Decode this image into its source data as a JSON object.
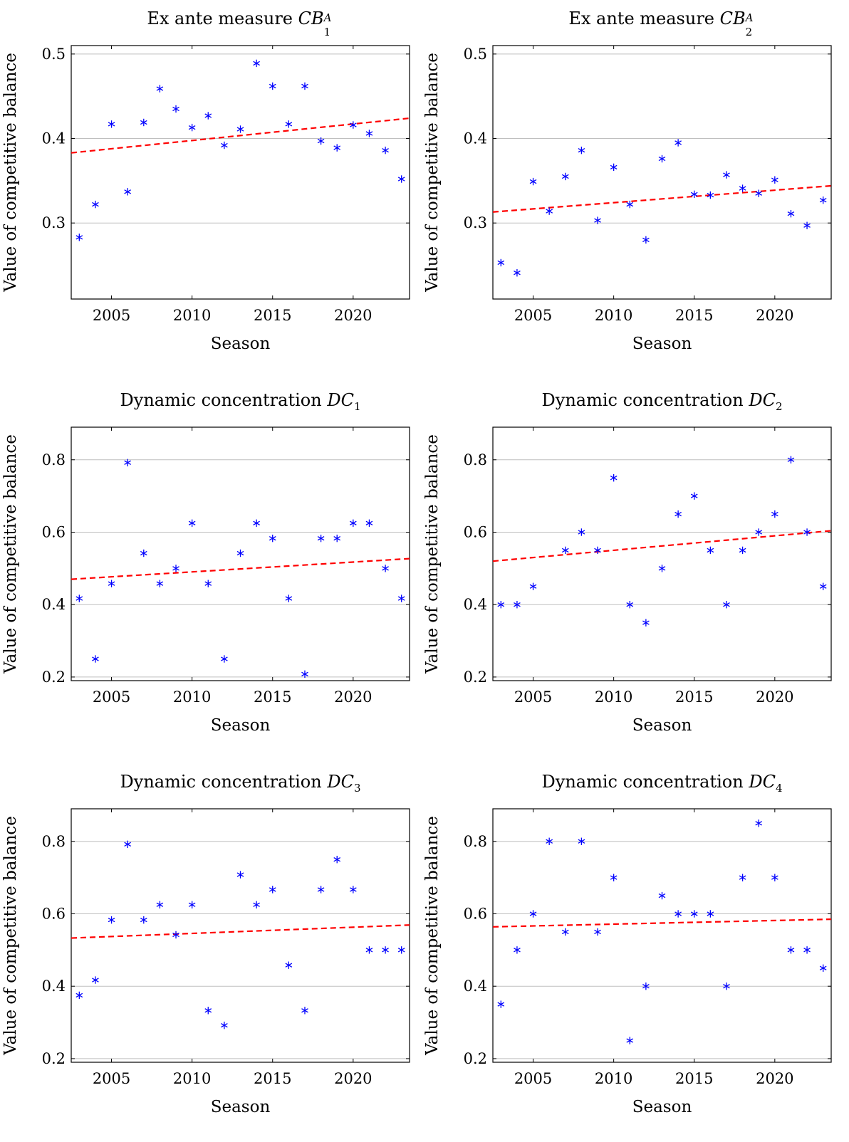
{
  "chart_data": [
    {
      "type": "scatter",
      "title_parts": {
        "main": "Ex ante measure ",
        "var": "CB",
        "sub": "1",
        "sup": "A"
      },
      "xlabel": "Season",
      "ylabel": "Value of competitive balance",
      "xlim": [
        2002.5,
        2023.5
      ],
      "ylim": [
        0.21,
        0.51
      ],
      "xticks": [
        2005,
        2010,
        2015,
        2020
      ],
      "yticks": [
        0.3,
        0.4,
        0.5
      ],
      "ytick_labels": [
        "0.3",
        "0.4",
        "0.5"
      ],
      "grid": "horizontal",
      "x": [
        2003,
        2004,
        2005,
        2006,
        2007,
        2008,
        2009,
        2010,
        2011,
        2012,
        2013,
        2014,
        2015,
        2016,
        2017,
        2018,
        2019,
        2020,
        2021,
        2022,
        2023
      ],
      "y": [
        0.283,
        0.322,
        0.417,
        0.337,
        0.419,
        0.459,
        0.435,
        0.413,
        0.427,
        0.392,
        0.411,
        0.489,
        0.462,
        0.417,
        0.462,
        0.397,
        0.389,
        0.416,
        0.406,
        0.386,
        0.352
      ],
      "trend": [
        [
          2002.5,
          0.383
        ],
        [
          2023.5,
          0.424
        ]
      ]
    },
    {
      "type": "scatter",
      "title_parts": {
        "main": "Ex ante measure ",
        "var": "CB",
        "sub": "2",
        "sup": "A"
      },
      "xlabel": "Season",
      "ylabel": "Value of competitive balance",
      "xlim": [
        2002.5,
        2023.5
      ],
      "ylim": [
        0.21,
        0.51
      ],
      "xticks": [
        2005,
        2010,
        2015,
        2020
      ],
      "yticks": [
        0.3,
        0.4,
        0.5
      ],
      "ytick_labels": [
        "0.3",
        "0.4",
        "0.5"
      ],
      "grid": "horizontal",
      "x": [
        2003,
        2004,
        2005,
        2006,
        2007,
        2008,
        2009,
        2010,
        2011,
        2012,
        2013,
        2014,
        2015,
        2016,
        2017,
        2018,
        2019,
        2020,
        2021,
        2022,
        2023
      ],
      "y": [
        0.253,
        0.241,
        0.349,
        0.314,
        0.355,
        0.386,
        0.303,
        0.366,
        0.322,
        0.28,
        0.376,
        0.395,
        0.334,
        0.333,
        0.357,
        0.341,
        0.335,
        0.351,
        0.311,
        0.297,
        0.327
      ],
      "trend": [
        [
          2002.5,
          0.313
        ],
        [
          2023.5,
          0.344
        ]
      ]
    },
    {
      "type": "scatter",
      "title_parts": {
        "main": "Dynamic concentration ",
        "var": "DC",
        "sub": "1",
        "sup": ""
      },
      "xlabel": "Season",
      "ylabel": "Value of competitive balance",
      "xlim": [
        2002.5,
        2023.5
      ],
      "ylim": [
        0.19,
        0.89
      ],
      "xticks": [
        2005,
        2010,
        2015,
        2020
      ],
      "yticks": [
        0.2,
        0.4,
        0.6,
        0.8
      ],
      "ytick_labels": [
        "0.2",
        "0.4",
        "0.6",
        "0.8"
      ],
      "grid": "horizontal",
      "x": [
        2003,
        2004,
        2005,
        2006,
        2007,
        2008,
        2009,
        2010,
        2011,
        2012,
        2013,
        2014,
        2015,
        2016,
        2017,
        2018,
        2019,
        2020,
        2021,
        2022,
        2023
      ],
      "y": [
        0.417,
        0.25,
        0.458,
        0.792,
        0.542,
        0.458,
        0.5,
        0.625,
        0.458,
        0.25,
        0.542,
        0.625,
        0.583,
        0.417,
        0.208,
        0.583,
        0.583,
        0.625,
        0.625,
        0.5,
        0.417
      ],
      "trend": [
        [
          2002.5,
          0.47
        ],
        [
          2023.5,
          0.527
        ]
      ]
    },
    {
      "type": "scatter",
      "title_parts": {
        "main": "Dynamic concentration ",
        "var": "DC",
        "sub": "2",
        "sup": ""
      },
      "xlabel": "Season",
      "ylabel": "Value of competitive balance",
      "xlim": [
        2002.5,
        2023.5
      ],
      "ylim": [
        0.19,
        0.89
      ],
      "xticks": [
        2005,
        2010,
        2015,
        2020
      ],
      "yticks": [
        0.2,
        0.4,
        0.6,
        0.8
      ],
      "ytick_labels": [
        "0.2",
        "0.4",
        "0.6",
        "0.8"
      ],
      "grid": "horizontal",
      "x": [
        2003,
        2004,
        2005,
        2007,
        2008,
        2009,
        2010,
        2011,
        2012,
        2013,
        2014,
        2015,
        2016,
        2017,
        2018,
        2019,
        2020,
        2021,
        2022,
        2023
      ],
      "y": [
        0.4,
        0.4,
        0.45,
        0.55,
        0.6,
        0.55,
        0.75,
        0.4,
        0.35,
        0.5,
        0.65,
        0.7,
        0.55,
        0.4,
        0.55,
        0.6,
        0.65,
        0.8,
        0.6,
        0.45
      ],
      "trend": [
        [
          2002.5,
          0.52
        ],
        [
          2023.5,
          0.604
        ]
      ]
    },
    {
      "type": "scatter",
      "title_parts": {
        "main": "Dynamic concentration ",
        "var": "DC",
        "sub": "3",
        "sup": ""
      },
      "xlabel": "Season",
      "ylabel": "Value of competitive balance",
      "xlim": [
        2002.5,
        2023.5
      ],
      "ylim": [
        0.19,
        0.89
      ],
      "xticks": [
        2005,
        2010,
        2015,
        2020
      ],
      "yticks": [
        0.2,
        0.4,
        0.6,
        0.8
      ],
      "ytick_labels": [
        "0.2",
        "0.4",
        "0.6",
        "0.8"
      ],
      "grid": "horizontal",
      "x": [
        2003,
        2004,
        2005,
        2006,
        2007,
        2008,
        2009,
        2010,
        2011,
        2012,
        2013,
        2014,
        2015,
        2016,
        2017,
        2018,
        2019,
        2020,
        2021,
        2022,
        2023
      ],
      "y": [
        0.375,
        0.417,
        0.583,
        0.792,
        0.583,
        0.625,
        0.542,
        0.625,
        0.333,
        0.292,
        0.708,
        0.625,
        0.667,
        0.458,
        0.333,
        0.667,
        0.75,
        0.667,
        0.5,
        0.5,
        0.5
      ],
      "trend": [
        [
          2002.5,
          0.533
        ],
        [
          2023.5,
          0.569
        ]
      ]
    },
    {
      "type": "scatter",
      "title_parts": {
        "main": "Dynamic concentration ",
        "var": "DC",
        "sub": "4",
        "sup": ""
      },
      "xlabel": "Season",
      "ylabel": "Value of competitive balance",
      "xlim": [
        2002.5,
        2023.5
      ],
      "ylim": [
        0.19,
        0.89
      ],
      "xticks": [
        2005,
        2010,
        2015,
        2020
      ],
      "yticks": [
        0.2,
        0.4,
        0.6,
        0.8
      ],
      "ytick_labels": [
        "0.2",
        "0.4",
        "0.6",
        "0.8"
      ],
      "grid": "horizontal",
      "x": [
        2003,
        2004,
        2005,
        2006,
        2007,
        2008,
        2009,
        2010,
        2011,
        2012,
        2013,
        2014,
        2015,
        2016,
        2017,
        2018,
        2019,
        2020,
        2021,
        2022,
        2023
      ],
      "y": [
        0.35,
        0.5,
        0.6,
        0.8,
        0.55,
        0.8,
        0.55,
        0.7,
        0.25,
        0.4,
        0.65,
        0.6,
        0.6,
        0.6,
        0.4,
        0.7,
        0.85,
        0.7,
        0.5,
        0.5,
        0.45
      ],
      "trend": [
        [
          2002.5,
          0.564
        ],
        [
          2023.5,
          0.585
        ]
      ]
    }
  ],
  "colors": {
    "points": "#0000ff",
    "trend": "#ff0000",
    "grid": "#bfbfbf",
    "axis": "#000000"
  }
}
